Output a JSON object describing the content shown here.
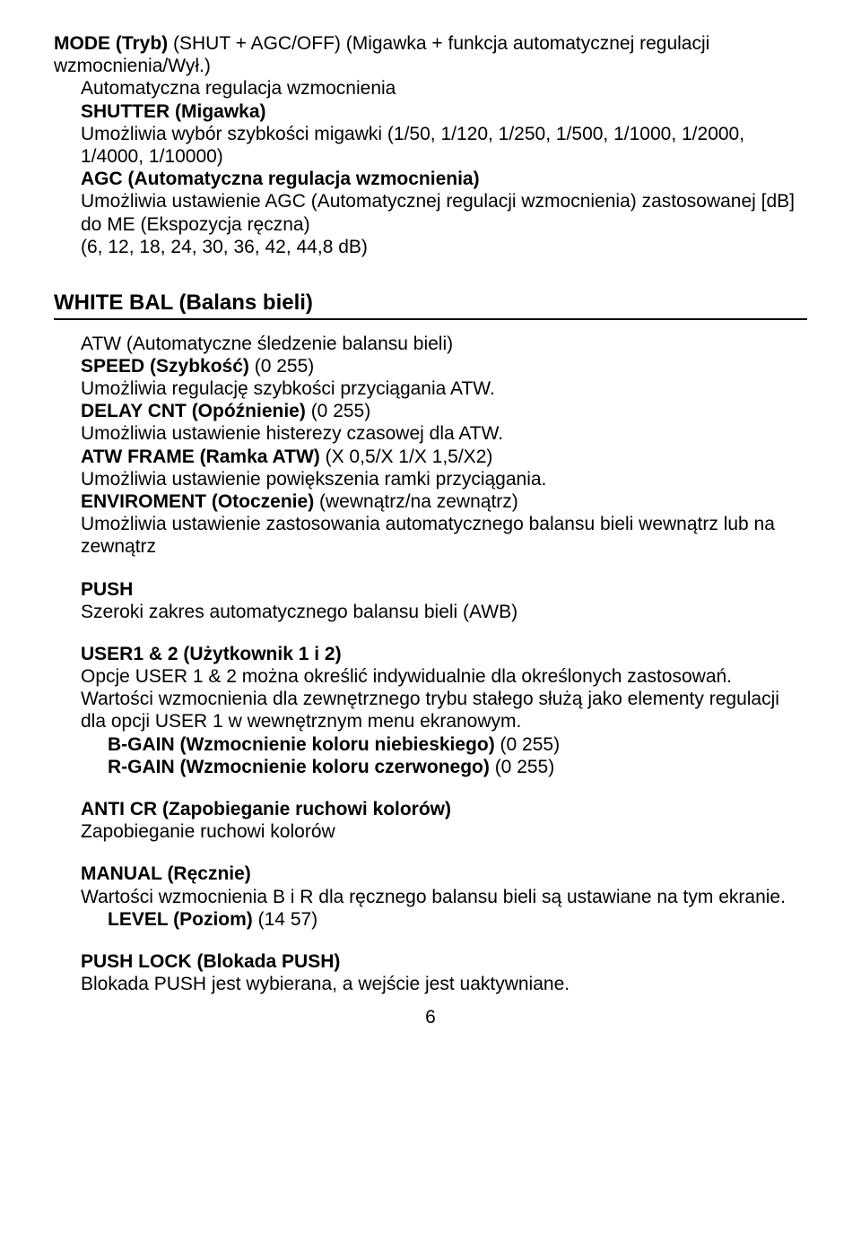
{
  "top": {
    "mode_label": "MODE (Tryb)",
    "mode_desc": " (SHUT + AGC/OFF) (Migawka + funkcja automatycznej regulacji wzmocnienia/Wył.)",
    "auto_heading": "Automatyczna regulacja wzmocnienia",
    "shutter_label": "SHUTTER (Migawka)",
    "shutter_desc": "Umożliwia wybór szybkości migawki (1/50, 1/120, 1/250, 1/500, 1/1000, 1/2000, 1/4000,    1/10000)",
    "agc_label": "AGC (Automatyczna regulacja wzmocnienia)",
    "agc_desc1": "Umożliwia ustawienie AGC (Automatycznej regulacji wzmocnienia) zastosowanej [dB] do ME (Ekspozycja ręczna)",
    "agc_desc2": "(6, 12, 18, 24, 30, 36, 42, 44,8 dB)"
  },
  "white_bal": {
    "heading": "WHITE BAL (Balans bieli)",
    "atw_heading": "ATW (Automatyczne śledzenie balansu bieli)",
    "speed_label": "SPEED (Szybkość)",
    "speed_range": " (0 255)",
    "speed_desc": "Umożliwia regulację szybkości przyciągania ATW.",
    "delay_label": "DELAY CNT (Opóźnienie)",
    "delay_range": " (0 255)",
    "delay_desc": "Umożliwia ustawienie histerezy czasowej dla ATW.",
    "frame_label": "ATW FRAME (Ramka ATW)",
    "frame_range": " (X 0,5/X 1/X 1,5/X2)",
    "frame_desc": "Umożliwia ustawienie powiększenia ramki przyciągania.",
    "env_label": "ENVIROMENT (Otoczenie)",
    "env_range": " (wewnątrz/na zewnątrz)",
    "env_desc": "Umożliwia ustawienie zastosowania automatycznego balansu bieli wewnątrz lub na zewnątrz",
    "push_label": "PUSH",
    "push_desc": "Szeroki zakres automatycznego balansu bieli (AWB)",
    "user_label": "USER1 & 2 (Użytkownik 1 i 2)",
    "user_desc": "Opcje USER 1 & 2 można określić indywidualnie dla określonych zastosowań. Wartości wzmocnienia dla zewnętrznego trybu stałego służą jako elementy regulacji dla opcji USER 1 w wewnętrznym menu ekranowym.",
    "bgain_label": "B-GAIN (Wzmocnienie koloru niebieskiego)",
    "bgain_range": " (0 255)",
    "rgain_label": "R-GAIN (Wzmocnienie koloru czerwonego)",
    "rgain_range": " (0 255)",
    "anticr_label": "ANTI CR (Zapobieganie ruchowi kolorów)",
    "anticr_desc": "Zapobieganie ruchowi kolorów",
    "manual_label": "MANUAL (Ręcznie)",
    "manual_desc": "Wartości wzmocnienia B i R dla ręcznego balansu bieli są ustawiane na tym ekranie.",
    "level_label": "LEVEL (Poziom)",
    "level_range": "    (14 57)",
    "pushlock_label": "PUSH LOCK (Blokada PUSH)",
    "pushlock_desc": "Blokada PUSH jest wybierana, a wejście jest uaktywniane."
  },
  "page_number": "6"
}
